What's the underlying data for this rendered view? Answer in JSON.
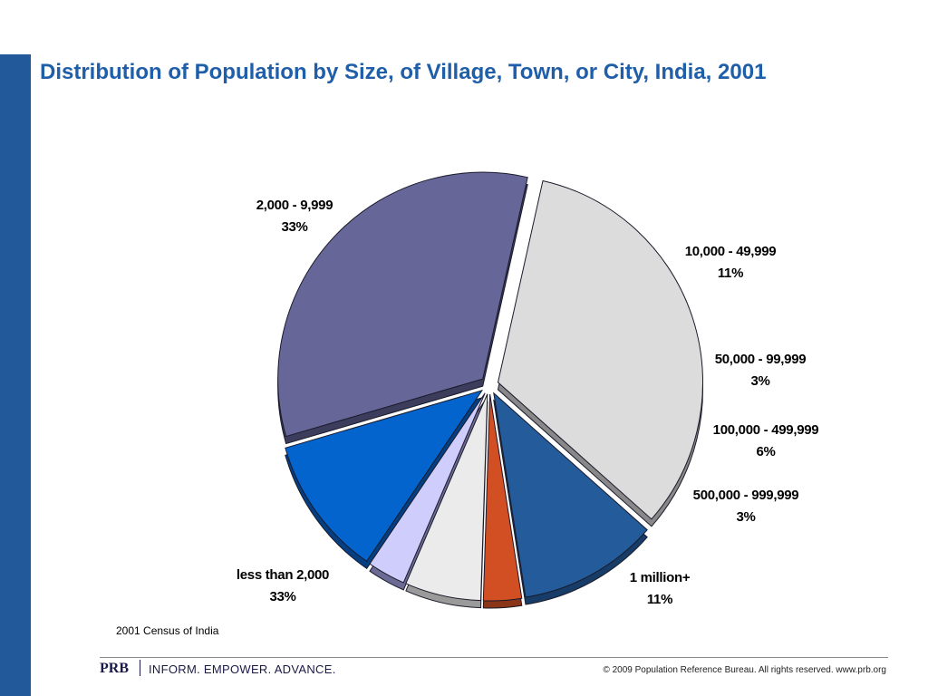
{
  "title": "Distribution of Population by Size, of Village, Town, or City, India, 2001",
  "source": "2001 Census of India",
  "footer": {
    "logo": "PRB",
    "tagline": "INFORM. EMPOWER. ADVANCE.",
    "copyright": "© 2009 Population Reference Bureau. All rights reserved. www.prb.org"
  },
  "colors": {
    "sidebar": "#22599b",
    "title": "#1f5ea8"
  },
  "chart_data": {
    "type": "pie",
    "title": "Distribution of Population by Size, of Village, Town, or City, India, 2001",
    "slices": [
      {
        "label": "2,000 - 9,999",
        "value_label": "33%",
        "value": 33,
        "color": "#dcdcdc",
        "side": "#888888"
      },
      {
        "label": "10,000 - 49,999",
        "value_label": "11%",
        "value": 11,
        "color": "#235b9b",
        "side": "#173c67"
      },
      {
        "label": "50,000 - 99,999",
        "value_label": "3%",
        "value": 3,
        "color": "#d24f24",
        "side": "#8a3418"
      },
      {
        "label": "100,000 - 499,999",
        "value_label": "6%",
        "value": 6,
        "color": "#ebebeb",
        "side": "#9a9a9a"
      },
      {
        "label": "500,000 - 999,999",
        "value_label": "3%",
        "value": 3,
        "color": "#cfcdfb",
        "side": "#6a6a95"
      },
      {
        "label": "1 million+",
        "value_label": "11%",
        "value": 11,
        "color": "#0464ce",
        "side": "#033f82"
      },
      {
        "label": "less than 2,000",
        "value_label": "33%",
        "value": 33,
        "color": "#666699",
        "side": "#3c3c5c"
      }
    ],
    "legend": "none"
  }
}
